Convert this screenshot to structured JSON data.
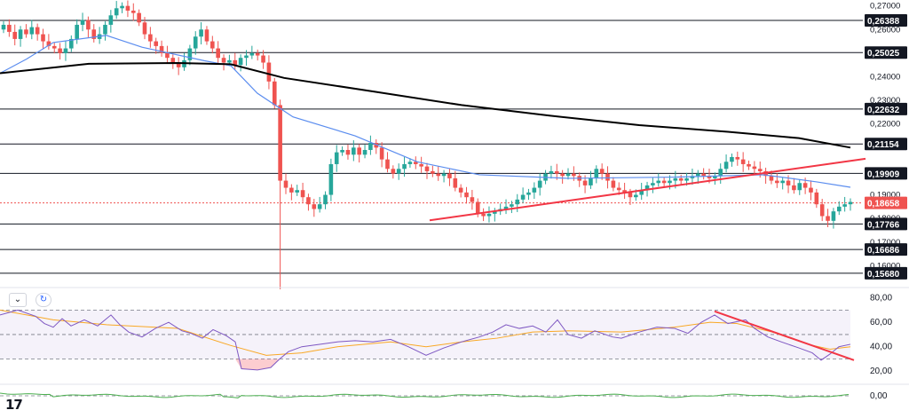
{
  "chart_data": {
    "type": "candlestick",
    "price_panel": {
      "y_range": [
        0.1515,
        0.2725
      ],
      "axis_ticks": [
        "0,27000",
        "0,26000",
        "0,24000",
        "0,23000",
        "0,22000",
        "0,19000",
        "0,18000",
        "0,17000",
        "0,16000"
      ],
      "axis_tick_values": [
        0.27,
        0.26,
        0.24,
        0.23,
        0.22,
        0.19,
        0.18,
        0.17,
        0.16
      ],
      "levels": [
        {
          "label": "0,26388",
          "value": 0.26388
        },
        {
          "label": "0,25025",
          "value": 0.25025
        },
        {
          "label": "0,22632",
          "value": 0.22632
        },
        {
          "label": "0,21154",
          "value": 0.21154
        },
        {
          "label": "0,19909",
          "value": 0.19909
        },
        {
          "label": "0,18658",
          "value": 0.18658,
          "current": true
        },
        {
          "label": "0,17766",
          "value": 0.17766
        },
        {
          "label": "0,16686",
          "value": 0.16686
        },
        {
          "label": "0,15680",
          "value": 0.1568
        }
      ],
      "closes": [
        0.262,
        0.259,
        0.256,
        0.26,
        0.258,
        0.261,
        0.258,
        0.255,
        0.253,
        0.252,
        0.25,
        0.252,
        0.256,
        0.262,
        0.264,
        0.26,
        0.256,
        0.258,
        0.262,
        0.266,
        0.269,
        0.27,
        0.268,
        0.267,
        0.263,
        0.258,
        0.255,
        0.253,
        0.25,
        0.248,
        0.246,
        0.244,
        0.247,
        0.252,
        0.257,
        0.26,
        0.255,
        0.252,
        0.248,
        0.246,
        0.247,
        0.245,
        0.248,
        0.249,
        0.25,
        0.249,
        0.246,
        0.238,
        0.228,
        0.196,
        0.193,
        0.191,
        0.192,
        0.189,
        0.186,
        0.184,
        0.186,
        0.19,
        0.203,
        0.208,
        0.209,
        0.207,
        0.21,
        0.207,
        0.209,
        0.212,
        0.21,
        0.205,
        0.201,
        0.199,
        0.201,
        0.203,
        0.204,
        0.203,
        0.202,
        0.2,
        0.199,
        0.198,
        0.199,
        0.197,
        0.193,
        0.191,
        0.189,
        0.187,
        0.182,
        0.181,
        0.182,
        0.183,
        0.184,
        0.185,
        0.186,
        0.188,
        0.19,
        0.191,
        0.193,
        0.196,
        0.199,
        0.2,
        0.199,
        0.198,
        0.199,
        0.198,
        0.196,
        0.194,
        0.197,
        0.201,
        0.199,
        0.196,
        0.193,
        0.192,
        0.191,
        0.189,
        0.19,
        0.192,
        0.194,
        0.195,
        0.196,
        0.195,
        0.196,
        0.197,
        0.196,
        0.197,
        0.198,
        0.199,
        0.198,
        0.197,
        0.198,
        0.201,
        0.204,
        0.206,
        0.205,
        0.203,
        0.202,
        0.201,
        0.2,
        0.198,
        0.196,
        0.195,
        0.196,
        0.194,
        0.192,
        0.195,
        0.193,
        0.191,
        0.186,
        0.181,
        0.179,
        0.183,
        0.185,
        0.186,
        0.187
      ],
      "ema50": [
        [
          0,
          0.2415
        ],
        [
          30,
          0.2475
        ],
        [
          60,
          0.2545
        ],
        [
          120,
          0.2575
        ],
        [
          160,
          0.2525
        ],
        [
          230,
          0.2468
        ],
        [
          260,
          0.2447
        ],
        [
          290,
          0.233
        ],
        [
          330,
          0.223
        ],
        [
          400,
          0.215
        ],
        [
          470,
          0.204
        ],
        [
          540,
          0.1985
        ],
        [
          640,
          0.197
        ],
        [
          760,
          0.1975
        ],
        [
          860,
          0.1985
        ],
        [
          920,
          0.1955
        ],
        [
          958,
          0.1932
        ]
      ],
      "ema200": [
        [
          0,
          0.2415
        ],
        [
          100,
          0.2455
        ],
        [
          200,
          0.2458
        ],
        [
          260,
          0.2453
        ],
        [
          320,
          0.2395
        ],
        [
          420,
          0.2338
        ],
        [
          520,
          0.228
        ],
        [
          620,
          0.2235
        ],
        [
          720,
          0.2195
        ],
        [
          820,
          0.2167
        ],
        [
          900,
          0.214
        ],
        [
          958,
          0.21
        ]
      ],
      "trendline_from": [
        484,
        0.1792
      ],
      "trendline_to": [
        975,
        0.2053
      ]
    },
    "rsi_panel": {
      "y_range": [
        10,
        87
      ],
      "axis_ticks": [
        "80,00",
        "60,00",
        "40,00",
        "20,00"
      ],
      "axis_tick_values": [
        80,
        60,
        40,
        20
      ],
      "band_upper": 70,
      "band_lower": 30,
      "mid": 50,
      "rsi": [
        [
          0,
          66
        ],
        [
          20,
          70
        ],
        [
          40,
          65
        ],
        [
          50,
          59
        ],
        [
          60,
          56
        ],
        [
          70,
          63
        ],
        [
          80,
          57
        ],
        [
          95,
          62
        ],
        [
          110,
          57
        ],
        [
          125,
          66
        ],
        [
          135,
          58
        ],
        [
          145,
          52
        ],
        [
          160,
          48
        ],
        [
          175,
          55
        ],
        [
          190,
          60
        ],
        [
          205,
          53
        ],
        [
          215,
          51
        ],
        [
          228,
          47
        ],
        [
          240,
          54
        ],
        [
          255,
          49
        ],
        [
          265,
          44
        ],
        [
          272,
          22
        ],
        [
          290,
          21
        ],
        [
          305,
          23
        ],
        [
          315,
          30
        ],
        [
          325,
          36
        ],
        [
          340,
          40
        ],
        [
          360,
          42
        ],
        [
          380,
          44
        ],
        [
          400,
          45
        ],
        [
          420,
          44
        ],
        [
          440,
          46
        ],
        [
          460,
          40
        ],
        [
          480,
          33
        ],
        [
          500,
          39
        ],
        [
          520,
          44
        ],
        [
          540,
          48
        ],
        [
          555,
          52
        ],
        [
          570,
          58
        ],
        [
          585,
          55
        ],
        [
          600,
          57
        ],
        [
          615,
          52
        ],
        [
          628,
          62
        ],
        [
          640,
          50
        ],
        [
          655,
          47
        ],
        [
          670,
          53
        ],
        [
          690,
          48
        ],
        [
          700,
          47
        ],
        [
          720,
          52
        ],
        [
          740,
          56
        ],
        [
          760,
          55
        ],
        [
          775,
          51
        ],
        [
          790,
          60
        ],
        [
          805,
          66
        ],
        [
          820,
          59
        ],
        [
          840,
          62
        ],
        [
          850,
          55
        ],
        [
          865,
          48
        ],
        [
          880,
          44
        ],
        [
          900,
          39
        ],
        [
          915,
          35
        ],
        [
          925,
          29
        ],
        [
          935,
          34
        ],
        [
          945,
          40
        ],
        [
          958,
          42
        ]
      ],
      "rsi_ma": [
        [
          0,
          70
        ],
        [
          60,
          62
        ],
        [
          120,
          58
        ],
        [
          200,
          55
        ],
        [
          260,
          41
        ],
        [
          300,
          33
        ],
        [
          340,
          35
        ],
        [
          380,
          40
        ],
        [
          440,
          44
        ],
        [
          480,
          40
        ],
        [
          520,
          44
        ],
        [
          560,
          47
        ],
        [
          600,
          52
        ],
        [
          640,
          53
        ],
        [
          700,
          52
        ],
        [
          760,
          56
        ],
        [
          800,
          60
        ],
        [
          830,
          59
        ],
        [
          870,
          52
        ],
        [
          910,
          42
        ],
        [
          935,
          38
        ],
        [
          958,
          40
        ]
      ],
      "trendline_from": [
        805,
        69
      ],
      "trendline_to": [
        962,
        29
      ]
    },
    "macd_panel": {
      "axis_ticks": [
        "0,00"
      ],
      "axis_tick_values": [
        0
      ]
    }
  },
  "colors": {
    "up": "#26a69a",
    "down": "#ef5350",
    "ema50": "#5b8def",
    "ema200": "#000000",
    "trendline": "#f23645",
    "rsi": "#7e57c2",
    "rsi_ma": "#f9a825",
    "macd": "#4caf50"
  },
  "ui": {
    "logo": "TV",
    "collapse_icon": "chevron-down-icon",
    "settings_icon": "refresh-icon",
    "chevron": "⌄",
    "settings_glyph": "↻",
    "logo_text": "17"
  }
}
